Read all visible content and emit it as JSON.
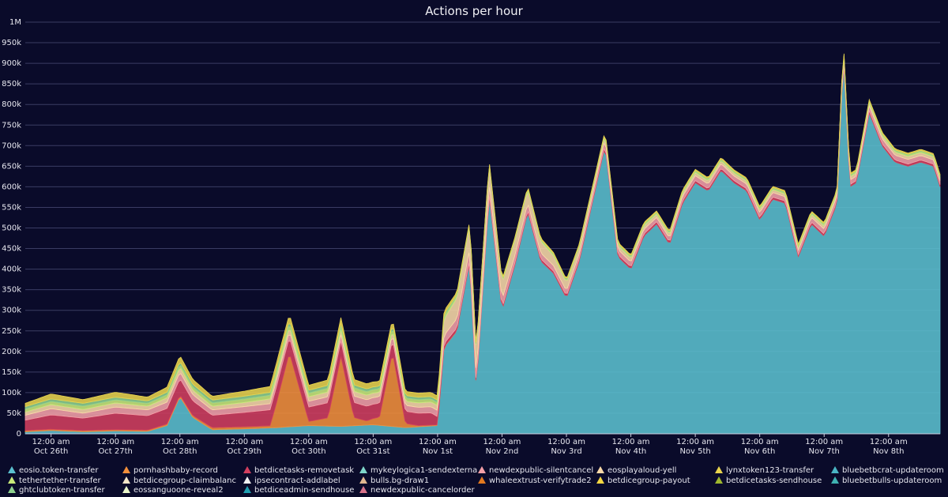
{
  "chart_data": {
    "type": "area",
    "title": "Actions per hour",
    "xlabel": "",
    "ylabel": "",
    "ylim": [
      0,
      1000000
    ],
    "y_ticks": [
      "0",
      "50k",
      "100k",
      "150k",
      "200k",
      "250k",
      "300k",
      "350k",
      "400k",
      "450k",
      "500k",
      "550k",
      "600k",
      "650k",
      "700k",
      "750k",
      "800k",
      "850k",
      "900k",
      "950k",
      "1M"
    ],
    "x_ticks": [
      {
        "time": "12:00 am",
        "date": "Oct 26th",
        "day": 0.5
      },
      {
        "time": "12:00 am",
        "date": "Oct 27th",
        "day": 1.5
      },
      {
        "time": "12:00 am",
        "date": "Oct 28th",
        "day": 2.5
      },
      {
        "time": "12:00 am",
        "date": "Oct 29th",
        "day": 3.5
      },
      {
        "time": "12:00 am",
        "date": "Oct 30th",
        "day": 4.5
      },
      {
        "time": "12:00 am",
        "date": "Oct 31st",
        "day": 5.5
      },
      {
        "time": "12:00 am",
        "date": "Nov 1st",
        "day": 6.5
      },
      {
        "time": "12:00 am",
        "date": "Nov 2nd",
        "day": 7.5
      },
      {
        "time": "12:00 am",
        "date": "Nov 3rd",
        "day": 8.5
      },
      {
        "time": "12:00 am",
        "date": "Nov 4th",
        "day": 9.5
      },
      {
        "time": "12:00 am",
        "date": "Nov 5th",
        "day": 10.5
      },
      {
        "time": "12:00 am",
        "date": "Nov 6th",
        "day": 11.5
      },
      {
        "time": "12:00 am",
        "date": "Nov 7th",
        "day": 12.5
      },
      {
        "time": "12:00 am",
        "date": "Nov 8th",
        "day": 13.5
      }
    ],
    "x_range_days": [
      0.1,
      14.3
    ],
    "grid": true,
    "legend_position": "bottom",
    "series": [
      {
        "name": "eosio.token-transfer",
        "color": "#5bc0cf",
        "x": [
          0.1,
          0.5,
          1.0,
          1.5,
          2.0,
          2.3,
          2.5,
          2.7,
          3.0,
          3.5,
          4.0,
          4.5,
          5.0,
          5.5,
          6.0,
          6.5,
          6.6,
          6.8,
          7.0,
          7.1,
          7.3,
          7.5,
          7.7,
          7.9,
          8.1,
          8.3,
          8.5,
          8.7,
          8.9,
          9.1,
          9.3,
          9.5,
          9.7,
          9.9,
          10.1,
          10.3,
          10.5,
          10.7,
          10.9,
          11.1,
          11.3,
          11.5,
          11.7,
          11.9,
          12.1,
          12.3,
          12.5,
          12.7,
          12.8,
          12.9,
          13.0,
          13.2,
          13.4,
          13.6,
          13.8,
          14.0,
          14.2,
          14.3
        ],
        "values": [
          5000,
          8000,
          5000,
          7000,
          6000,
          20000,
          90000,
          40000,
          10000,
          12000,
          15000,
          20000,
          18000,
          22000,
          15000,
          20000,
          210000,
          250000,
          420000,
          110000,
          580000,
          300000,
          410000,
          540000,
          420000,
          390000,
          330000,
          420000,
          560000,
          700000,
          430000,
          400000,
          480000,
          510000,
          460000,
          560000,
          610000,
          590000,
          640000,
          610000,
          590000,
          520000,
          570000,
          560000,
          430000,
          510000,
          480000,
          560000,
          920000,
          600000,
          610000,
          780000,
          700000,
          660000,
          650000,
          660000,
          650000,
          600000
        ]
      },
      {
        "name": "pornhashbaby-record",
        "color": "#f28f3b",
        "x": [
          0.1,
          1.0,
          2.0,
          3.0,
          3.9,
          4.0,
          4.2,
          4.5,
          4.8,
          5.0,
          5.2,
          5.4,
          5.6,
          5.8,
          6.0,
          6.2,
          6.4,
          6.6,
          7.0,
          14.3
        ],
        "values": [
          3000,
          3000,
          3000,
          5000,
          5000,
          60000,
          180000,
          10000,
          20000,
          170000,
          20000,
          10000,
          20000,
          180000,
          10000,
          3000,
          2000,
          1000,
          0,
          0
        ]
      },
      {
        "name": "betdicetasks-removetask",
        "color": "#d23f5e",
        "x": [
          0.1,
          0.5,
          1.0,
          1.5,
          2.0,
          2.5,
          3.0,
          3.5,
          4.0,
          4.5,
          5.0,
          5.5,
          6.0,
          6.4,
          6.5,
          6.6,
          7.0,
          8.0,
          9.0,
          10.0,
          11.0,
          12.0,
          13.0,
          14.3
        ],
        "values": [
          25000,
          35000,
          30000,
          40000,
          35000,
          40000,
          30000,
          35000,
          40000,
          35000,
          38000,
          35000,
          30000,
          30000,
          20000,
          8000,
          6000,
          5000,
          5000,
          5000,
          5000,
          5000,
          5000,
          5000
        ]
      },
      {
        "name": "newdexpublic-silentcancel",
        "color": "#f4a0a8",
        "x": [
          0.1,
          0.5,
          1.0,
          1.5,
          2.0,
          2.5,
          3.0,
          3.5,
          4.0,
          4.5,
          5.0,
          5.5,
          6.0,
          6.5,
          6.6,
          7.0,
          7.5,
          8.0,
          8.5,
          9.0,
          9.5,
          10.0,
          10.5,
          11.0,
          11.5,
          12.0,
          12.5,
          13.0,
          13.5,
          14.0,
          14.3
        ],
        "values": [
          12000,
          15000,
          12000,
          15000,
          14000,
          16000,
          13000,
          14000,
          15000,
          14000,
          15000,
          16000,
          14000,
          15000,
          20000,
          25000,
          20000,
          15000,
          12000,
          14000,
          12000,
          10000,
          12000,
          11000,
          12000,
          10000,
          12000,
          11000,
          12000,
          11000,
          10000
        ]
      },
      {
        "name": "eosplayaloud-yell",
        "color": "#f9d9a8",
        "x": [
          0.1,
          0.5,
          1.0,
          1.5,
          2.0,
          2.5,
          3.0,
          3.5,
          4.0,
          4.5,
          5.0,
          5.5,
          6.0,
          6.5,
          6.6,
          7.0,
          7.5,
          8.0,
          8.5,
          9.0,
          10.0,
          11.0,
          12.0,
          13.0,
          14.3
        ],
        "values": [
          8000,
          10000,
          9000,
          10000,
          9000,
          12000,
          9000,
          10000,
          12000,
          11000,
          12000,
          11000,
          10000,
          12000,
          40000,
          60000,
          40000,
          30000,
          20000,
          10000,
          8000,
          7000,
          7000,
          8000,
          7000
        ]
      },
      {
        "name": "tethertether-transfer",
        "color": "#c8e97a",
        "x": [
          0.1,
          1.0,
          2.0,
          3.0,
          4.0,
          5.0,
          6.0,
          6.5,
          7.0,
          14.3
        ],
        "values": [
          7000,
          8000,
          7000,
          8000,
          9000,
          9000,
          8000,
          7000,
          3000,
          3000
        ]
      },
      {
        "name": "ghtclubtoken-transfer",
        "color": "#8fd18f",
        "x": [
          0.1,
          1.0,
          2.0,
          3.0,
          4.0,
          5.0,
          6.0,
          6.5,
          7.0,
          14.3
        ],
        "values": [
          6000,
          7000,
          6000,
          7000,
          7000,
          7000,
          6000,
          6000,
          2000,
          2000
        ]
      },
      {
        "name": "lynxtoken123-transfer",
        "color": "#e8d44d",
        "x": [
          0.1,
          0.5,
          1.0,
          1.5,
          2.0,
          2.5,
          3.0,
          3.5,
          4.0,
          4.5,
          5.0,
          5.5,
          6.0,
          6.5,
          7.0,
          14.3
        ],
        "values": [
          8000,
          12000,
          9000,
          12000,
          9000,
          14000,
          9000,
          12000,
          15000,
          12000,
          14000,
          12000,
          10000,
          10000,
          3000,
          3000
        ]
      }
    ],
    "legend": [
      "eosio.token-transfer",
      "pornhashbaby-record",
      "betdicetasks-removetask",
      "mykeylogica1-sendexterna",
      "newdexpublic-silentcancel",
      "eosplayaloud-yell",
      "lynxtoken123-transfer",
      "bluebetbcrat-updateroom",
      "tethertether-transfer",
      "betdicegroup-claimbalanc",
      "ipsecontract-addlabel",
      "bulls.bg-draw1",
      "whaleextrust-verifytrade2",
      "betdicegroup-payout",
      "betdicetasks-sendhouse",
      "bluebetbulls-updateroom",
      "ghtclubtoken-transfer",
      "eossanguoone-reveal2",
      "betdiceadmin-sendhouse",
      "newdexpublic-cancelorder"
    ],
    "legend_colors": [
      "#5bc0cf",
      "#f28f3b",
      "#d23f5e",
      "#7fd6c9",
      "#f4a0a8",
      "#f9d9a8",
      "#e8d44d",
      "#4ab5c4",
      "#c8e97a",
      "#f3e5c8",
      "#f0f0f0",
      "#e0b890",
      "#e2781f",
      "#f5d742",
      "#9fb82e",
      "#3fb2b2",
      "#8fd18f",
      "#e9f5c9",
      "#1f9fb0",
      "#d8728a"
    ]
  }
}
